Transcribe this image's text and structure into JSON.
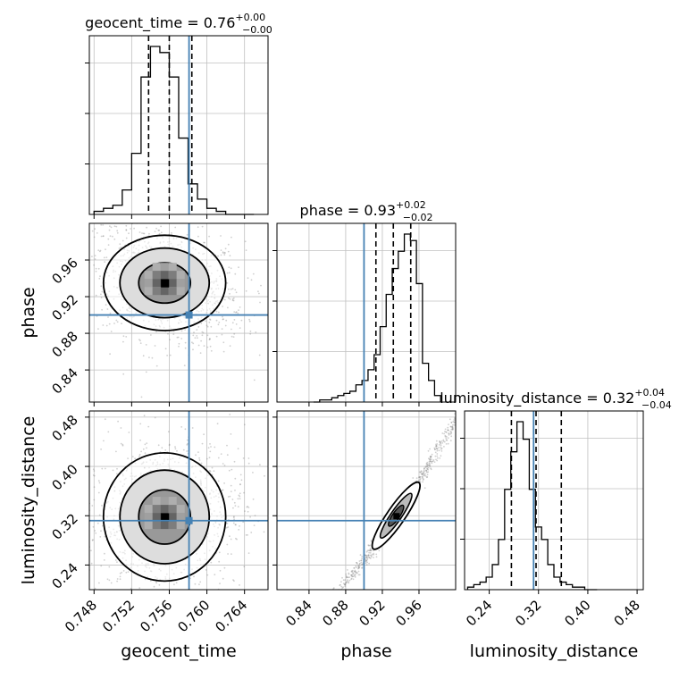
{
  "chart_data": {
    "type": "corner",
    "colors": {
      "truth": "#4682b4",
      "histogram": "#000000",
      "grid": "#c0c0c0",
      "density": "#000000",
      "samples": "#777777"
    },
    "params": [
      {
        "name": "geocent_time",
        "label": "geocent_time",
        "title_prefix": "geocent_time = ",
        "median": "0.76",
        "err_plus": "+0.00",
        "err_minus": "−0.00",
        "truth": 0.7581,
        "quantiles": [
          0.7538,
          0.756,
          0.7584
        ],
        "range": [
          0.7475,
          0.7665
        ],
        "ticks": [
          0.748,
          0.752,
          0.756,
          0.76,
          0.764
        ],
        "tick_labels": [
          "0.748",
          "0.752",
          "0.756",
          "0.760",
          "0.764"
        ],
        "hist": {
          "edges_start": 0.748,
          "bin_width": 0.001,
          "counts": [
            1,
            2,
            3,
            8,
            20,
            45,
            55,
            53,
            45,
            25,
            10,
            5,
            2,
            1,
            0,
            0,
            0
          ]
        }
      },
      {
        "name": "phase",
        "label": "phase",
        "title_prefix": "phase = ",
        "median": "0.93",
        "err_plus": "+0.02",
        "err_minus": "−0.02",
        "truth": 0.9,
        "quantiles": [
          0.913,
          0.932,
          0.951
        ],
        "range": [
          0.805,
          1.0
        ],
        "ticks": [
          0.84,
          0.88,
          0.92,
          0.96
        ],
        "tick_labels": [
          "0.84",
          "0.88",
          "0.92",
          "0.96"
        ],
        "hist": {
          "edges_start": 0.845,
          "bin_width": 0.0066,
          "counts": [
            0,
            1,
            1,
            2,
            3,
            4,
            5,
            8,
            10,
            15,
            22,
            35,
            50,
            62,
            70,
            78,
            75,
            55,
            18,
            10,
            3
          ]
        }
      },
      {
        "name": "luminosity_distance",
        "label": "luminosity_distance",
        "title_prefix": "luminosity_distance = ",
        "median": "0.32",
        "err_plus": "+0.04",
        "err_minus": "−0.04",
        "truth": 0.312,
        "quantiles": [
          0.276,
          0.316,
          0.357
        ],
        "range": [
          0.2,
          0.49
        ],
        "ticks": [
          0.24,
          0.32,
          0.4,
          0.48
        ],
        "tick_labels": [
          "0.24",
          "0.32",
          "0.40",
          "0.48"
        ],
        "hist": {
          "edges_start": 0.205,
          "bin_width": 0.01,
          "counts": [
            1,
            2,
            3,
            5,
            10,
            20,
            40,
            55,
            67,
            60,
            40,
            25,
            20,
            10,
            5,
            3,
            2,
            1,
            1,
            0,
            0
          ]
        }
      }
    ],
    "scatter_panels": [
      {
        "x": "geocent_time",
        "y": "phase",
        "mean": [
          0.7555,
          0.935
        ],
        "sd": [
          0.0025,
          0.02
        ],
        "corr": -0.3,
        "density": "blocky"
      },
      {
        "x": "geocent_time",
        "y": "luminosity_distance",
        "mean": [
          0.7555,
          0.318
        ],
        "sd": [
          0.0025,
          0.04
        ],
        "corr": 0.1,
        "density": "blocky"
      },
      {
        "x": "phase",
        "y": "luminosity_distance",
        "mean": [
          0.935,
          0.32
        ],
        "sd": [
          0.02,
          0.04
        ],
        "corr": 0.98,
        "density": "ridge"
      }
    ],
    "grid": true
  }
}
